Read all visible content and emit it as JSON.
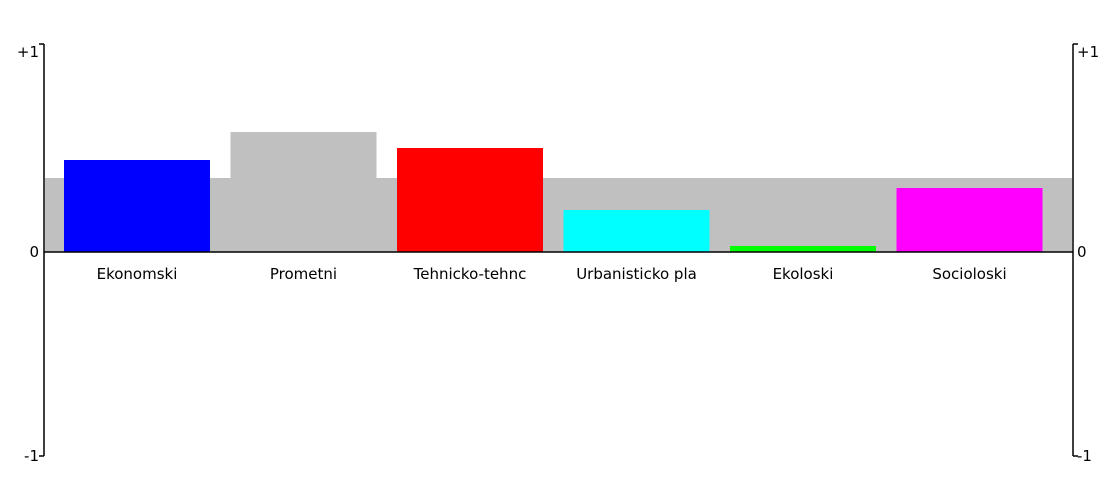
{
  "chart_data": {
    "type": "bar",
    "title": "",
    "xlabel": "",
    "ylabel": "",
    "ylim": [
      -1,
      1
    ],
    "grid": false,
    "legend": "none",
    "y_ticks_left": [
      "+1",
      "0",
      "-1"
    ],
    "y_ticks_right": [
      "+1",
      "0",
      "-1"
    ],
    "categories": [
      "Ekonomski",
      "Prometni",
      "Tehnicko-tehnc",
      "Urbanisticko pla",
      "Ekoloski",
      "Socioloski"
    ],
    "values": [
      0.46,
      0.6,
      0.52,
      0.21,
      0.03,
      0.32
    ],
    "colors": [
      "#0000ff",
      "#c0c0c0",
      "#ff0000",
      "#00ffff",
      "#00ff00",
      "#ff00ff"
    ],
    "reference_band": {
      "value": 0.37,
      "color": "#c0c0c0"
    }
  }
}
